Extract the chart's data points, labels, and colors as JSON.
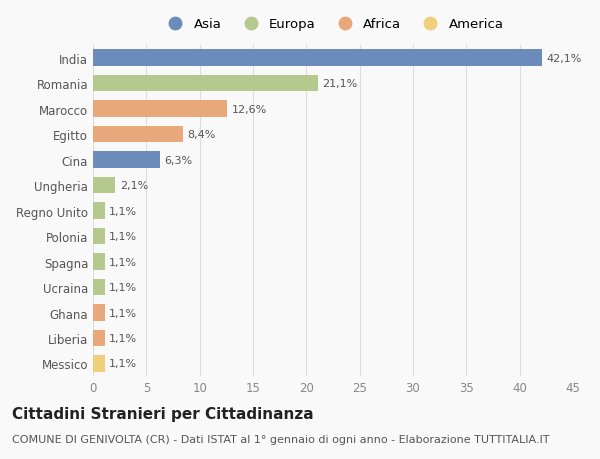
{
  "categories": [
    "India",
    "Romania",
    "Marocco",
    "Egitto",
    "Cina",
    "Ungheria",
    "Regno Unito",
    "Polonia",
    "Spagna",
    "Ucraina",
    "Ghana",
    "Liberia",
    "Messico"
  ],
  "values": [
    42.1,
    21.1,
    12.6,
    8.4,
    6.3,
    2.1,
    1.1,
    1.1,
    1.1,
    1.1,
    1.1,
    1.1,
    1.1
  ],
  "labels": [
    "42,1%",
    "21,1%",
    "12,6%",
    "8,4%",
    "6,3%",
    "2,1%",
    "1,1%",
    "1,1%",
    "1,1%",
    "1,1%",
    "1,1%",
    "1,1%",
    "1,1%"
  ],
  "continents": [
    "Asia",
    "Europa",
    "Africa",
    "Africa",
    "Asia",
    "Europa",
    "Europa",
    "Europa",
    "Europa",
    "Europa",
    "Africa",
    "Africa",
    "America"
  ],
  "colors": {
    "Asia": "#6b8cba",
    "Europa": "#b5c98e",
    "Africa": "#e8a87c",
    "America": "#f0cf7a"
  },
  "legend_items": [
    "Asia",
    "Europa",
    "Africa",
    "America"
  ],
  "legend_colors": [
    "#6b8cba",
    "#b5c98e",
    "#e8a87c",
    "#f0cf7a"
  ],
  "xlim": [
    0,
    45
  ],
  "xticks": [
    0,
    5,
    10,
    15,
    20,
    25,
    30,
    35,
    40,
    45
  ],
  "title": "Cittadini Stranieri per Cittadinanza",
  "subtitle": "COMUNE DI GENIVOLTA (CR) - Dati ISTAT al 1° gennaio di ogni anno - Elaborazione TUTTITALIA.IT",
  "bg_color": "#f9f9f9",
  "bar_height": 0.65,
  "title_fontsize": 11,
  "subtitle_fontsize": 8,
  "label_fontsize": 8,
  "tick_fontsize": 8.5,
  "legend_fontsize": 9.5
}
